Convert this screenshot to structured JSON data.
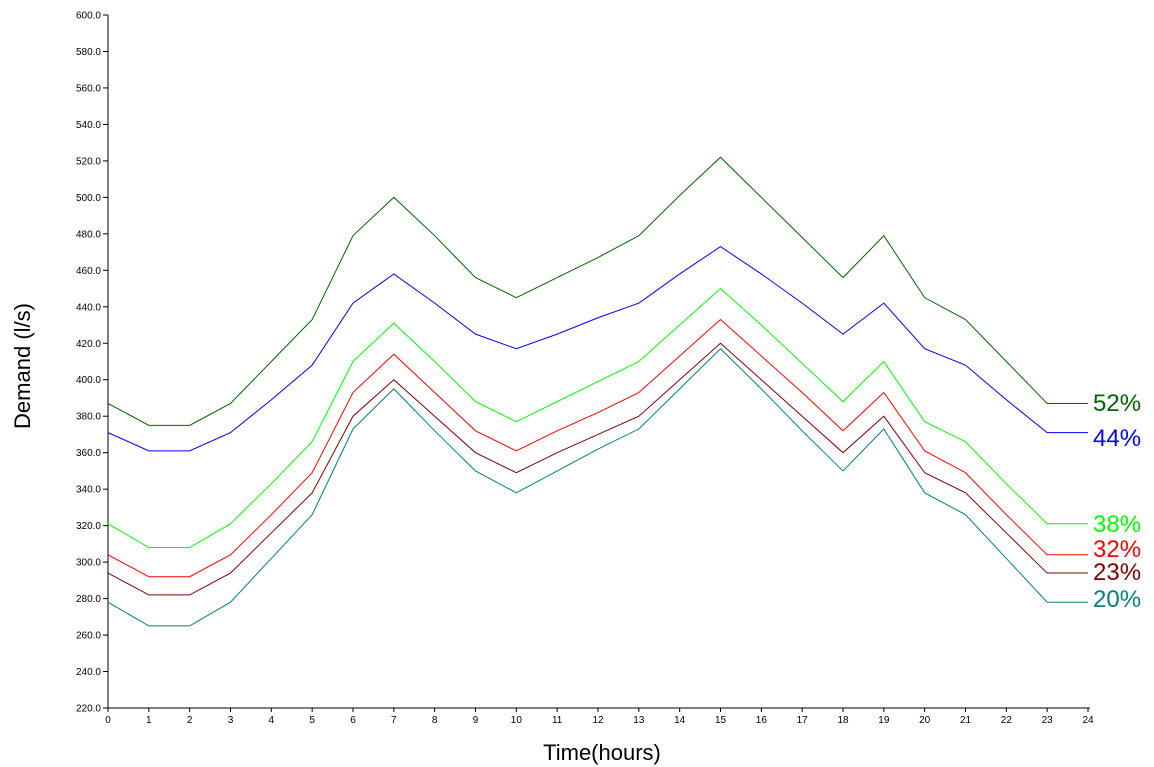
{
  "chart_data": {
    "type": "line",
    "title": "",
    "xlabel": "Time(hours)",
    "ylabel": "Demand (l/s)",
    "xlim": [
      0,
      24
    ],
    "ylim": [
      220,
      600
    ],
    "grid": false,
    "x_ticks": [
      "0",
      "1",
      "2",
      "3",
      "4",
      "5",
      "6",
      "7",
      "8",
      "9",
      "10",
      "11",
      "12",
      "13",
      "14",
      "15",
      "16",
      "17",
      "18",
      "19",
      "20",
      "21",
      "22",
      "23",
      "24"
    ],
    "y_ticks": [
      "220.0",
      "240.0",
      "260.0",
      "280.0",
      "300.0",
      "320.0",
      "340.0",
      "360.0",
      "380.0",
      "400.0",
      "420.0",
      "440.0",
      "460.0",
      "480.0",
      "500.0",
      "520.0",
      "540.0",
      "560.0",
      "580.0",
      "600.0"
    ],
    "x": [
      0,
      1,
      2,
      3,
      4,
      5,
      6,
      7,
      8,
      9,
      10,
      11,
      12,
      13,
      14,
      15,
      16,
      17,
      18,
      19,
      20,
      21,
      22,
      23,
      24
    ],
    "series": [
      {
        "name": "52%",
        "color": "#006400",
        "values": [
          387,
          375,
          375,
          387,
          410,
          433,
          479,
          500,
          479,
          456,
          445,
          456,
          467,
          479,
          501,
          522,
          500,
          478,
          456,
          479,
          445,
          433,
          410,
          387,
          387
        ]
      },
      {
        "name": "44%",
        "color": "#0000ff",
        "values": [
          371,
          361,
          361,
          371,
          389,
          408,
          442,
          458,
          442,
          425,
          417,
          425,
          434,
          442,
          458,
          473,
          458,
          442,
          425,
          442,
          417,
          408,
          389,
          371,
          371
        ]
      },
      {
        "name": "38%",
        "color": "#00ff00",
        "values": [
          321,
          308,
          308,
          321,
          343,
          366,
          410,
          431,
          410,
          388,
          377,
          388,
          399,
          410,
          430,
          450,
          430,
          409,
          388,
          410,
          377,
          366,
          343,
          321,
          321
        ]
      },
      {
        "name": "32%",
        "color": "#ff0000",
        "values": [
          304,
          292,
          292,
          304,
          326,
          349,
          393,
          414,
          393,
          372,
          361,
          372,
          382,
          393,
          413,
          433,
          413,
          393,
          372,
          393,
          361,
          349,
          326,
          304,
          304
        ]
      },
      {
        "name": "23%",
        "color": "#800000",
        "values": [
          294,
          282,
          282,
          294,
          316,
          338,
          380,
          400,
          380,
          360,
          349,
          360,
          370,
          380,
          400,
          420,
          400,
          380,
          360,
          380,
          349,
          338,
          316,
          294,
          294
        ]
      },
      {
        "name": "20%",
        "color": "#008080",
        "values": [
          278,
          265,
          265,
          278,
          302,
          326,
          373,
          395,
          372,
          350,
          338,
          350,
          362,
          373,
          395,
          417,
          395,
          372,
          350,
          373,
          338,
          326,
          302,
          278,
          278
        ]
      }
    ]
  }
}
